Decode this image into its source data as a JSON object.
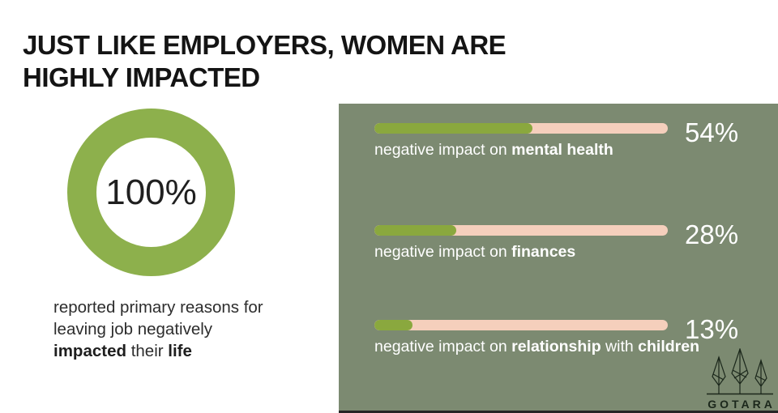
{
  "title": {
    "line1": "JUST LIKE EMPLOYERS, WOMEN ARE",
    "line2": "HIGHLY IMPACTED"
  },
  "donut": {
    "center_label": "100%",
    "percent": 100,
    "ring_color": "#8DB04C"
  },
  "caption": {
    "segments": [
      {
        "text": "reported primary reasons for",
        "bold": false,
        "break_after": true
      },
      {
        "text": "leaving job negatively",
        "bold": false,
        "break_after": true
      },
      {
        "text": "impacted",
        "bold": true
      },
      {
        "text": " their ",
        "bold": false
      },
      {
        "text": "life",
        "bold": true
      }
    ]
  },
  "bars": [
    {
      "percent": 54,
      "value_label": "54%",
      "label_segments": [
        {
          "text": "negative impact on ",
          "bold": false
        },
        {
          "text": "mental health",
          "bold": true
        }
      ]
    },
    {
      "percent": 28,
      "value_label": "28%",
      "label_segments": [
        {
          "text": "negative impact on ",
          "bold": false
        },
        {
          "text": "finances",
          "bold": true
        }
      ]
    },
    {
      "percent": 13,
      "value_label": "13%",
      "label_segments": [
        {
          "text": "negative impact on ",
          "bold": false
        },
        {
          "text": "relationship",
          "bold": true
        },
        {
          "text": " with ",
          "bold": false
        },
        {
          "text": "children",
          "bold": true
        }
      ]
    }
  ],
  "logo": {
    "text": "GOTARA",
    "icon": "three-trees-icon",
    "color": "#1b271b"
  },
  "colors": {
    "panel_background": "#7C8A71",
    "bar_track": "#F5CFBC",
    "bar_fill": "#8AA83E",
    "donut_ring": "#8DB04C",
    "title_text": "#141414",
    "panel_text": "#ffffff"
  },
  "chart_data": [
    {
      "type": "pie",
      "style": "donut",
      "categories": [
        "reported primary reasons for leaving job negatively impacted their life"
      ],
      "values": [
        100
      ],
      "center_label": "100%",
      "title": "100% reported primary reasons for leaving job negatively impacted their life",
      "colors": [
        "#8DB04C"
      ]
    },
    {
      "type": "bar",
      "orientation": "horizontal",
      "categories": [
        "negative impact on mental health",
        "negative impact on finances",
        "negative impact on relationship with children"
      ],
      "values": [
        54,
        28,
        13
      ],
      "value_labels": [
        "54%",
        "28%",
        "13%"
      ],
      "xlim": [
        0,
        100
      ],
      "title": "",
      "xlabel": "",
      "ylabel": "",
      "grid": false,
      "legend": false
    }
  ]
}
